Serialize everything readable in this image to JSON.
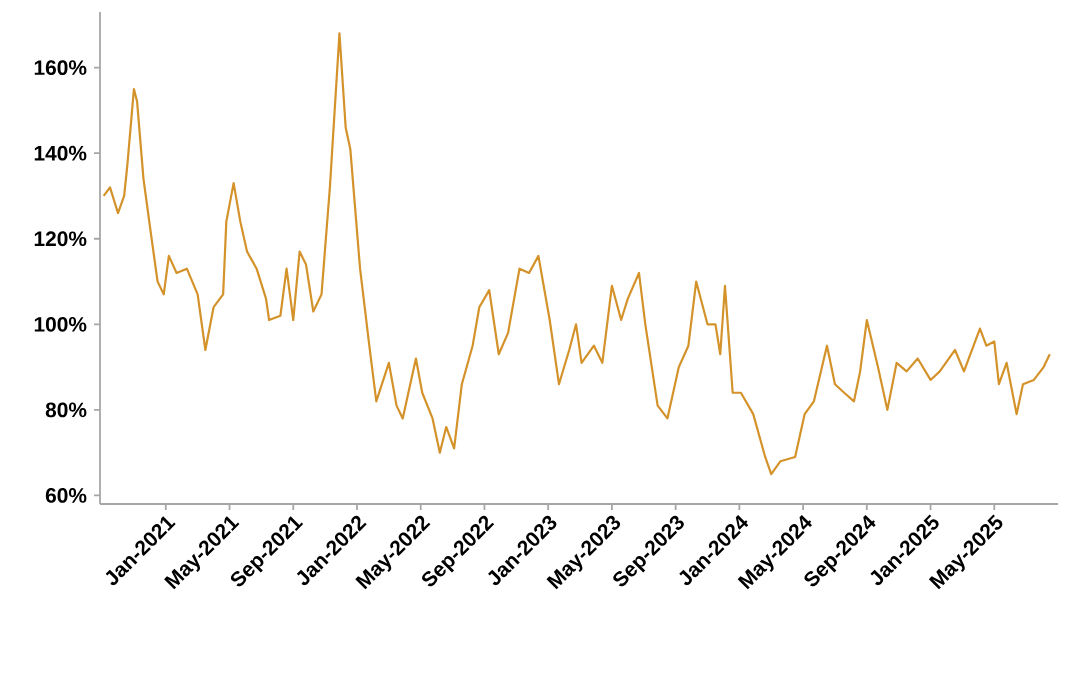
{
  "chart_data": {
    "type": "line",
    "color": "#d4922a",
    "marker": "none",
    "line_style": "solid",
    "xlim": [
      "2020-08-28",
      "2025-09-01"
    ],
    "ylim": [
      58,
      173
    ],
    "xticks": [
      {
        "value": "2021-01-01",
        "label": "Jan-2021"
      },
      {
        "value": "2021-05-01",
        "label": "May-2021"
      },
      {
        "value": "2021-09-01",
        "label": "Sep-2021"
      },
      {
        "value": "2022-01-01",
        "label": "Jan-2022"
      },
      {
        "value": "2022-05-01",
        "label": "May-2022"
      },
      {
        "value": "2022-09-01",
        "label": "Sep-2022"
      },
      {
        "value": "2023-01-01",
        "label": "Jan-2023"
      },
      {
        "value": "2023-05-01",
        "label": "May-2023"
      },
      {
        "value": "2023-09-01",
        "label": "Sep-2023"
      },
      {
        "value": "2024-01-01",
        "label": "Jan-2024"
      },
      {
        "value": "2024-05-01",
        "label": "May-2024"
      },
      {
        "value": "2024-09-01",
        "label": "Sep-2024"
      },
      {
        "value": "2025-01-01",
        "label": "Jan-2025"
      },
      {
        "value": "2025-05-01",
        "label": "May-2025"
      }
    ],
    "yticks": [
      {
        "value": 60,
        "label": "60%"
      },
      {
        "value": 80,
        "label": "80%"
      },
      {
        "value": 100,
        "label": "100%"
      },
      {
        "value": 120,
        "label": "120%"
      },
      {
        "value": 140,
        "label": "140%"
      },
      {
        "value": 160,
        "label": "160%"
      }
    ],
    "x": [
      "2020-09-04",
      "2020-09-16",
      "2020-10-01",
      "2020-10-13",
      "2020-10-19",
      "2020-11-01",
      "2020-11-07",
      "2020-11-19",
      "2020-12-01",
      "2020-12-16",
      "2020-12-28",
      "2021-01-07",
      "2021-01-22",
      "2021-02-10",
      "2021-03-01",
      "2021-03-16",
      "2021-04-01",
      "2021-04-19",
      "2021-04-25",
      "2021-05-09",
      "2021-05-22",
      "2021-06-04",
      "2021-06-22",
      "2021-07-10",
      "2021-07-16",
      "2021-08-07",
      "2021-08-19",
      "2021-09-01",
      "2021-09-13",
      "2021-09-25",
      "2021-10-09",
      "2021-10-25",
      "2021-11-10",
      "2021-11-28",
      "2021-12-10",
      "2021-12-19",
      "2022-01-07",
      "2022-01-25",
      "2022-02-07",
      "2022-03-01",
      "2022-03-16",
      "2022-03-28",
      "2022-04-22",
      "2022-05-04",
      "2022-05-24",
      "2022-06-07",
      "2022-06-19",
      "2022-07-04",
      "2022-07-19",
      "2022-08-09",
      "2022-08-22",
      "2022-09-10",
      "2022-09-28",
      "2022-10-16",
      "2022-11-07",
      "2022-11-25",
      "2022-12-13",
      "2023-01-04",
      "2023-01-22",
      "2023-02-10",
      "2023-02-22",
      "2023-03-04",
      "2023-03-28",
      "2023-04-13",
      "2023-05-01",
      "2023-05-19",
      "2023-06-01",
      "2023-06-22",
      "2023-07-04",
      "2023-07-28",
      "2023-08-16",
      "2023-09-07",
      "2023-09-25",
      "2023-10-10",
      "2023-11-01",
      "2023-11-16",
      "2023-11-25",
      "2023-12-04",
      "2023-12-19",
      "2024-01-04",
      "2024-01-28",
      "2024-02-19",
      "2024-03-01",
      "2024-03-19",
      "2024-04-16",
      "2024-05-04",
      "2024-05-22",
      "2024-06-16",
      "2024-07-01",
      "2024-07-19",
      "2024-08-07",
      "2024-08-19",
      "2024-09-01",
      "2024-09-22",
      "2024-10-10",
      "2024-10-28",
      "2024-11-16",
      "2024-12-07",
      "2025-01-01",
      "2025-01-19",
      "2025-02-16",
      "2025-03-04",
      "2025-04-04",
      "2025-04-16",
      "2025-05-01",
      "2025-05-10",
      "2025-05-25",
      "2025-06-13",
      "2025-06-25",
      "2025-07-16",
      "2025-08-04",
      "2025-08-16"
    ],
    "values": [
      130,
      132,
      126,
      130,
      137,
      155,
      152,
      134,
      123,
      110,
      107,
      116,
      112,
      113,
      107,
      94,
      104,
      107,
      124,
      133,
      124,
      117,
      113,
      106,
      101,
      102,
      113,
      101,
      117,
      114,
      103,
      107,
      132,
      168,
      146,
      141,
      113,
      95,
      82,
      91,
      81,
      78,
      92,
      84,
      78,
      70,
      76,
      71,
      86,
      95,
      104,
      108,
      93,
      98,
      113,
      112,
      116,
      101,
      86,
      94,
      100,
      91,
      95,
      91,
      109,
      101,
      106,
      112,
      100,
      81,
      78,
      90,
      95,
      110,
      100,
      100,
      93,
      109,
      84,
      84,
      79,
      69,
      65,
      68,
      69,
      79,
      82,
      95,
      86,
      84,
      82,
      89,
      101,
      90,
      80,
      91,
      89,
      92,
      87,
      89,
      94,
      89,
      99,
      95,
      96,
      86,
      91,
      79,
      86,
      87,
      90,
      93
    ]
  }
}
